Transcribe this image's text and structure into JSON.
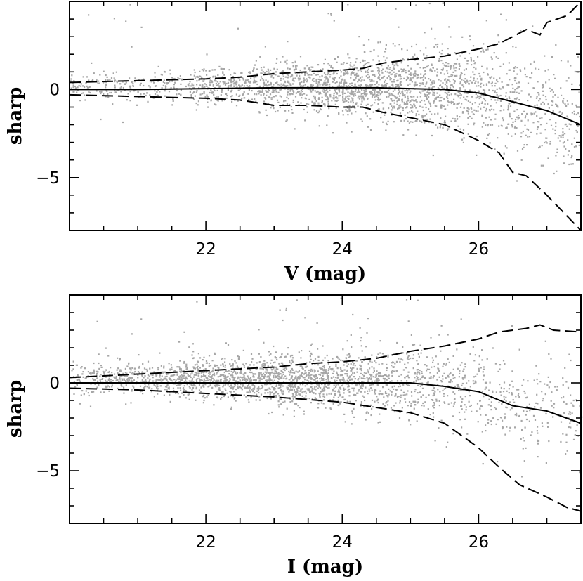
{
  "chart_data": [
    {
      "type": "scatter",
      "panel": "top",
      "title": "",
      "xlabel": "V (mag)",
      "ylabel": "sharp",
      "xlim": [
        20.0,
        27.5
      ],
      "ylim": [
        -8.0,
        5.0
      ],
      "x_ticks": [
        22,
        24,
        26
      ],
      "y_ticks": [
        -5,
        0
      ],
      "point_color": "#a6a6a6",
      "line_color": "#000000",
      "scatter_model": {
        "n_points": 2600,
        "x_peak": 24.6,
        "y_offset": 0.2,
        "spread_min": 0.35,
        "spread_max": 1.7
      },
      "series": [
        {
          "name": "median",
          "style": "solid",
          "x": [
            20.0,
            21.0,
            22.0,
            23.0,
            24.0,
            24.5,
            25.0,
            25.5,
            26.0,
            26.3,
            26.6,
            27.0,
            27.5
          ],
          "y": [
            0.0,
            0.0,
            0.05,
            0.1,
            0.1,
            0.1,
            0.05,
            0.0,
            -0.2,
            -0.5,
            -0.8,
            -1.2,
            -2.0
          ]
        },
        {
          "name": "upper envelope",
          "style": "dashed",
          "x": [
            20.0,
            21.0,
            22.0,
            22.5,
            23.0,
            23.5,
            24.0,
            24.3,
            24.6,
            25.0,
            25.5,
            26.0,
            26.3,
            26.5,
            26.7,
            26.9,
            27.0,
            27.3,
            27.5
          ],
          "y": [
            0.4,
            0.5,
            0.6,
            0.7,
            0.9,
            1.0,
            1.1,
            1.2,
            1.5,
            1.7,
            1.9,
            2.3,
            2.6,
            3.0,
            3.4,
            3.1,
            3.8,
            4.2,
            5.0
          ]
        },
        {
          "name": "lower envelope",
          "style": "dashed",
          "x": [
            20.0,
            21.0,
            22.0,
            22.5,
            23.0,
            23.5,
            24.0,
            24.3,
            24.6,
            25.0,
            25.5,
            26.0,
            26.3,
            26.5,
            26.7,
            27.0,
            27.3,
            27.5
          ],
          "y": [
            -0.3,
            -0.4,
            -0.5,
            -0.6,
            -0.9,
            -0.9,
            -1.0,
            -1.0,
            -1.3,
            -1.6,
            -2.0,
            -2.9,
            -3.6,
            -4.7,
            -4.9,
            -6.0,
            -7.2,
            -8.0
          ]
        }
      ]
    },
    {
      "type": "scatter",
      "panel": "bottom",
      "title": "",
      "xlabel": "I (mag)",
      "ylabel": "sharp",
      "xlim": [
        20.0,
        27.5
      ],
      "ylim": [
        -8.0,
        5.0
      ],
      "x_ticks": [
        22,
        24,
        26
      ],
      "y_ticks": [
        -5,
        0
      ],
      "point_color": "#a6a6a6",
      "line_color": "#000000",
      "scatter_model": {
        "n_points": 2600,
        "x_peak": 23.2,
        "y_offset": 0.3,
        "spread_min": 0.4,
        "spread_max": 1.6
      },
      "series": [
        {
          "name": "median",
          "style": "solid",
          "x": [
            20.0,
            21.0,
            22.0,
            23.0,
            24.0,
            25.0,
            25.5,
            26.0,
            26.5,
            27.0,
            27.5
          ],
          "y": [
            0.0,
            0.0,
            0.0,
            0.0,
            0.0,
            0.0,
            -0.2,
            -0.5,
            -1.3,
            -1.6,
            -2.3
          ]
        },
        {
          "name": "upper envelope",
          "style": "dashed",
          "x": [
            20.0,
            21.0,
            22.0,
            23.0,
            23.5,
            24.0,
            24.5,
            25.0,
            25.5,
            26.0,
            26.3,
            26.5,
            26.7,
            26.9,
            27.1,
            27.5
          ],
          "y": [
            0.3,
            0.5,
            0.7,
            0.9,
            1.1,
            1.2,
            1.4,
            1.8,
            2.1,
            2.5,
            2.9,
            3.0,
            3.1,
            3.3,
            3.0,
            2.9
          ]
        },
        {
          "name": "lower envelope",
          "style": "dashed",
          "x": [
            20.0,
            21.0,
            22.0,
            23.0,
            24.0,
            24.5,
            25.0,
            25.5,
            26.0,
            26.3,
            26.6,
            27.0,
            27.3,
            27.5
          ],
          "y": [
            -0.3,
            -0.4,
            -0.6,
            -0.8,
            -1.1,
            -1.4,
            -1.7,
            -2.3,
            -3.7,
            -4.8,
            -5.8,
            -6.5,
            -7.1,
            -7.3
          ]
        }
      ]
    }
  ]
}
